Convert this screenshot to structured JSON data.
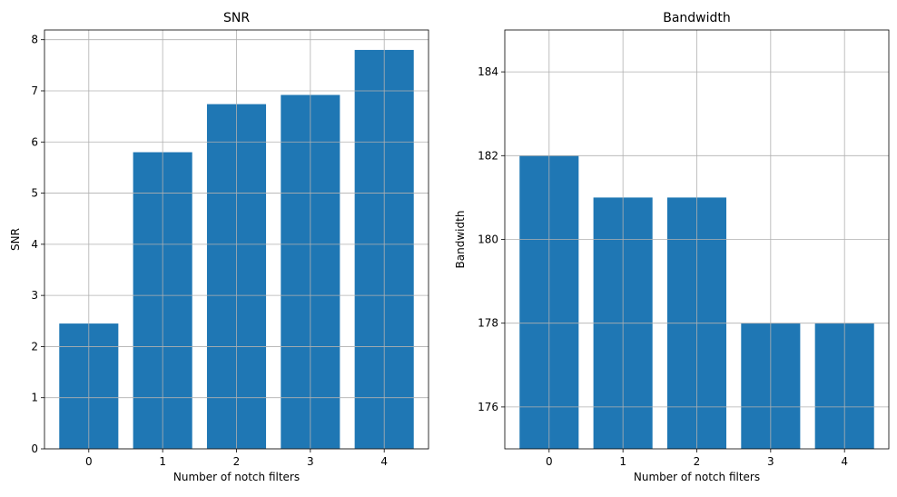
{
  "chart_data": [
    {
      "type": "bar",
      "title": "SNR",
      "xlabel": "Number of notch filters",
      "ylabel": "SNR",
      "categories": [
        "0",
        "1",
        "2",
        "3",
        "4"
      ],
      "values": [
        2.45,
        5.8,
        6.74,
        6.92,
        7.8
      ],
      "yticks": [
        0,
        1,
        2,
        3,
        4,
        5,
        6,
        7,
        8
      ],
      "ylim": [
        0,
        8.19
      ],
      "grid": true,
      "bar_color": "#1f77b4"
    },
    {
      "type": "bar",
      "title": "Bandwidth",
      "xlabel": "Number of notch filters",
      "ylabel": "Bandwidth",
      "categories": [
        "0",
        "1",
        "2",
        "3",
        "4"
      ],
      "values": [
        182,
        181,
        181,
        178,
        178
      ],
      "yticks": [
        176,
        178,
        180,
        182,
        184
      ],
      "ylim": [
        175,
        185
      ],
      "grid": true,
      "bar_color": "#1f77b4"
    }
  ]
}
